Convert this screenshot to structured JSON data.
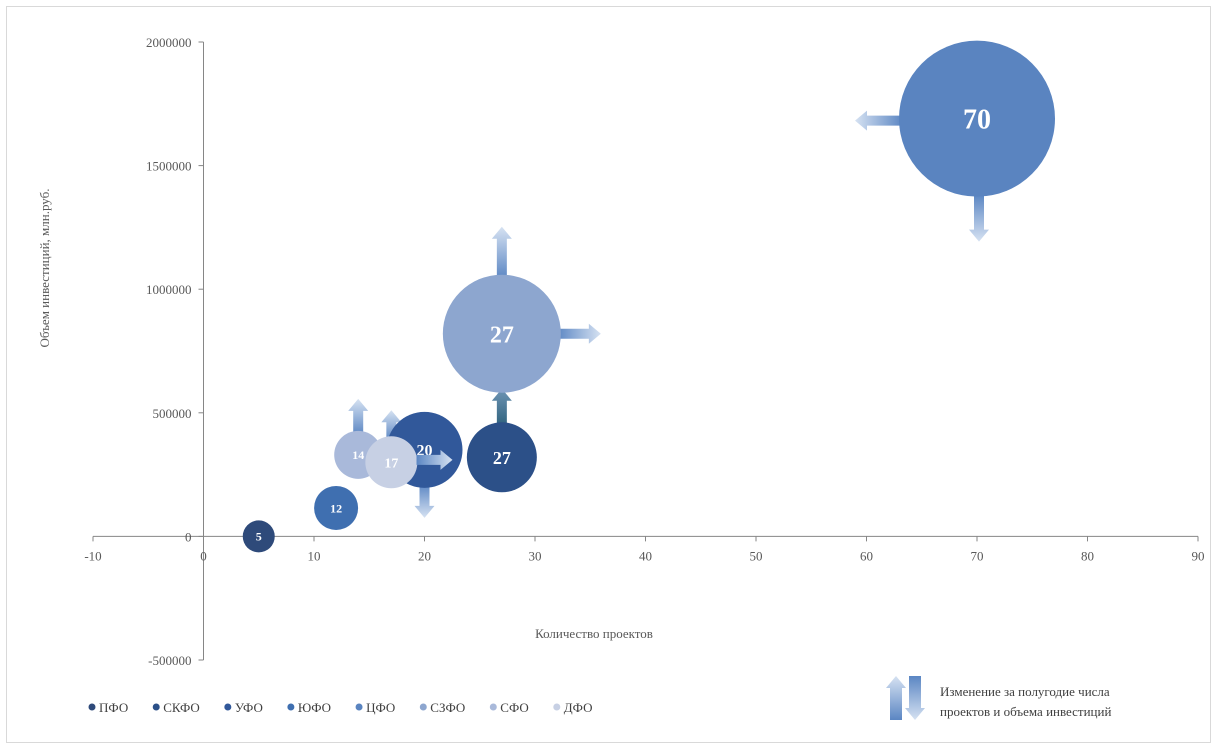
{
  "chart_data": {
    "type": "bubble",
    "xlabel": "Количество проектов",
    "ylabel": "Объем инвестиций, млн.руб.",
    "xlim": [
      -10,
      90
    ],
    "ylim": [
      -500000,
      2000000
    ],
    "x_ticks": [
      -10,
      0,
      10,
      20,
      30,
      40,
      50,
      60,
      70,
      80,
      90
    ],
    "y_ticks": [
      -500000,
      0,
      500000,
      1000000,
      1500000,
      2000000
    ],
    "x_tick_labels": [
      "-10",
      "0",
      "10",
      "20",
      "30",
      "40",
      "50",
      "60",
      "70",
      "80",
      "90"
    ],
    "y_tick_labels": [
      "-500000",
      "0",
      "500000",
      "1000000",
      "1500000",
      "2000000"
    ],
    "grid": false,
    "legend_position": "bottom",
    "series": [
      {
        "name": "ПФО",
        "color": "#2e4a7a",
        "x": 5,
        "y": 0,
        "label": "5"
      },
      {
        "name": "СКФО",
        "color": "#2c5088",
        "x": 27,
        "y": 320000,
        "label": "27"
      },
      {
        "name": "УФО",
        "color": "#31589a",
        "x": 20,
        "y": 350000,
        "label": "20"
      },
      {
        "name": "ЮФО",
        "color": "#3f6fb0",
        "x": 12,
        "y": 115000,
        "label": "12"
      },
      {
        "name": "ЦФО",
        "color": "#5a84c0",
        "x": 70,
        "y": 1690000,
        "label": "70"
      },
      {
        "name": "СЗФО",
        "color": "#8da6cf",
        "x": 27,
        "y": 820000,
        "label": "27"
      },
      {
        "name": "СФО",
        "color": "#a9b9da",
        "x": 14,
        "y": 330000,
        "label": "14"
      },
      {
        "name": "ДФО",
        "color": "#c7d0e4",
        "x": 17,
        "y": 300000,
        "label": "17"
      }
    ],
    "legend_note": "Изменение за полугодие числа\nпроектов и объема инвестиций"
  }
}
